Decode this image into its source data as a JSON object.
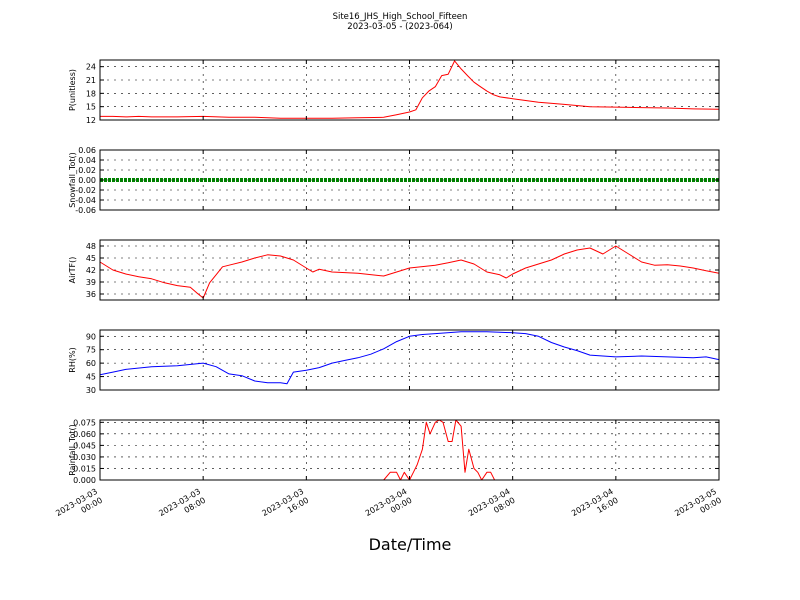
{
  "chart_data": {
    "type": "line",
    "title": "Site16_JHS_High_School_Fifteen",
    "subtitle": "2023-03-05 - (2023-064)",
    "xlabel": "Date/Time",
    "x_ticks": [
      [
        "2023-03-03",
        "00:00"
      ],
      [
        "2023-03-03",
        "08:00"
      ],
      [
        "2023-03-03",
        "16:00"
      ],
      [
        "2023-03-04",
        "00:00"
      ],
      [
        "2023-03-04",
        "08:00"
      ],
      [
        "2023-03-04",
        "16:00"
      ],
      [
        "2023-03-05",
        "00:00"
      ]
    ],
    "xlim": [
      0,
      48
    ],
    "grid": true,
    "panels": [
      {
        "ylabel": "P(unitless)",
        "ylim": [
          12,
          25.5
        ],
        "yticks": [
          "12",
          "15",
          "18",
          "21",
          "24"
        ],
        "ytick_values": [
          12,
          15,
          18,
          21,
          24
        ],
        "color": "#ff0000",
        "x": [
          0,
          1,
          2,
          3,
          4,
          6,
          8,
          10,
          12,
          14,
          16,
          18,
          20,
          22,
          23,
          24,
          24.5,
          25,
          25.5,
          26,
          26.5,
          27,
          27.5,
          28,
          28.5,
          29,
          29.5,
          30,
          30.5,
          31,
          32,
          34,
          36,
          38,
          40,
          42,
          44,
          46,
          48
        ],
        "y": [
          12.8,
          12.8,
          12.7,
          12.8,
          12.7,
          12.7,
          12.8,
          12.6,
          12.6,
          12.4,
          12.4,
          12.4,
          12.5,
          12.6,
          13.2,
          13.8,
          14.3,
          17.0,
          18.5,
          19.5,
          22.0,
          22.3,
          25.3,
          23.5,
          22.0,
          20.5,
          19.5,
          18.5,
          17.7,
          17.2,
          16.8,
          16.0,
          15.5,
          15.0,
          14.9,
          14.8,
          14.7,
          14.5,
          14.4
        ]
      },
      {
        "ylabel": "Snowfall_Tot()",
        "ylim": [
          -0.06,
          0.06
        ],
        "yticks": [
          "-0.06",
          "-0.04",
          "-0.02",
          "0.00",
          "0.02",
          "0.04",
          "0.06"
        ],
        "ytick_values": [
          -0.06,
          -0.04,
          -0.02,
          0,
          0.02,
          0.04,
          0.06
        ],
        "color": "#008000",
        "x": [
          0,
          48
        ],
        "y": [
          0,
          0
        ]
      },
      {
        "ylabel": "AirTF()",
        "ylim": [
          34.5,
          49.5
        ],
        "yticks": [
          "36",
          "39",
          "42",
          "45",
          "48"
        ],
        "ytick_values": [
          36,
          39,
          42,
          45,
          48
        ],
        "color": "#ff0000",
        "x": [
          0,
          1,
          2,
          3,
          4,
          5,
          6,
          7,
          7.5,
          8,
          8.5,
          9,
          9.5,
          10,
          11,
          12,
          13,
          14,
          15,
          16,
          16.5,
          17,
          18,
          20,
          22,
          24,
          26,
          27,
          28,
          28.5,
          29,
          30,
          31,
          31.5,
          32,
          33,
          34,
          35,
          36,
          37,
          38,
          39,
          40,
          41,
          42,
          43,
          44,
          45,
          46,
          47,
          48
        ],
        "y": [
          44,
          42,
          41,
          40.3,
          39.8,
          38.8,
          38.1,
          37.7,
          36.3,
          35.0,
          38.8,
          40.8,
          42.8,
          43.2,
          44.0,
          45.0,
          45.8,
          45.5,
          44.5,
          42.5,
          41.5,
          42.2,
          41.5,
          41.2,
          40.5,
          42.5,
          43.2,
          43.8,
          44.5,
          44.0,
          43.5,
          41.5,
          40.8,
          40.0,
          41.0,
          42.5,
          43.5,
          44.5,
          46.0,
          47.0,
          47.5,
          46.0,
          48.0,
          46.0,
          44.0,
          43.2,
          43.3,
          43.0,
          42.5,
          41.8,
          41.2
        ]
      },
      {
        "ylabel": "RH(%)",
        "ylim": [
          30,
          97
        ],
        "yticks": [
          "30",
          "45",
          "60",
          "75",
          "90"
        ],
        "ytick_values": [
          30,
          45,
          60,
          75,
          90
        ],
        "color": "#0000ff",
        "x": [
          0,
          1,
          2,
          4,
          6,
          8,
          9,
          10,
          11,
          12,
          13,
          14,
          14.5,
          15,
          16,
          17,
          18,
          19,
          20,
          21,
          22,
          23,
          24,
          25,
          26,
          28,
          30,
          32,
          33,
          34,
          35,
          36,
          37,
          38,
          40,
          42,
          44,
          46,
          47,
          48
        ],
        "y": [
          47,
          50,
          53,
          56,
          57,
          60,
          56,
          48,
          46,
          40,
          38,
          38,
          37,
          50,
          52,
          55,
          60,
          63,
          66,
          70,
          76,
          84,
          90,
          92,
          93,
          95,
          95,
          94,
          93,
          90,
          83,
          78,
          74,
          69,
          67,
          68,
          67,
          66,
          67,
          64
        ]
      },
      {
        "ylabel": "Rainfall_Tot()",
        "ylim": [
          0,
          0.078
        ],
        "yticks": [
          "0.000",
          "0.015",
          "0.030",
          "0.045",
          "0.060",
          "0.075"
        ],
        "ytick_values": [
          0,
          0.015,
          0.03,
          0.045,
          0.06,
          0.075
        ],
        "color": "#ff0000",
        "x": [
          0,
          22,
          22.5,
          23,
          23.3,
          23.6,
          24,
          24.3,
          24.6,
          25,
          25.3,
          25.6,
          26,
          26.3,
          26.6,
          27,
          27.3,
          27.6,
          28,
          28.3,
          28.6,
          29,
          29.3,
          29.6,
          30,
          30.3,
          30.6,
          31,
          48
        ],
        "y": [
          0,
          0,
          0.01,
          0.01,
          0,
          0.01,
          0,
          0.01,
          0.02,
          0.04,
          0.075,
          0.06,
          0.075,
          0.078,
          0.075,
          0.05,
          0.05,
          0.078,
          0.07,
          0.01,
          0.04,
          0.015,
          0.01,
          0,
          0.01,
          0.01,
          0,
          0,
          0
        ]
      }
    ]
  }
}
